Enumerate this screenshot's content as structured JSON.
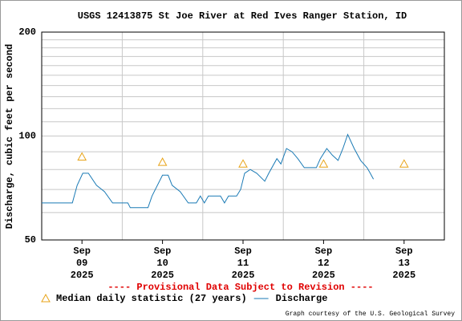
{
  "chart_data": {
    "type": "line",
    "title": "USGS 12413875 St Joe River at Red Ives Ranger Station, ID",
    "ylabel": "Discharge, cubic feet per second",
    "annotation": "---- Provisional Data Subject to Revision ----",
    "credit": "Graph courtesy of the U.S. Geological Survey",
    "xlim": [
      9,
      14
    ],
    "xticks": [
      {
        "value": 9.5,
        "label": "Sep 09 2025"
      },
      {
        "value": 10.5,
        "label": "Sep 10 2025"
      },
      {
        "value": 11.5,
        "label": "Sep 11 2025"
      },
      {
        "value": 12.5,
        "label": "Sep 12 2025"
      },
      {
        "value": 13.5,
        "label": "Sep 13 2025"
      }
    ],
    "x_minor_grid": [
      10,
      11,
      12,
      13
    ],
    "ylim": [
      50,
      200
    ],
    "yticks": [
      50,
      100,
      200
    ],
    "y_minor_grid": [
      60,
      70,
      80,
      90,
      110,
      120,
      130,
      140,
      150,
      160,
      170,
      180,
      190
    ],
    "log_scale": true,
    "grid": true,
    "legend": "bottom",
    "series": [
      {
        "name": "Median daily statistic (27 years)",
        "color": "#e8a317",
        "marker": "triangle",
        "x": [
          9.5,
          10.5,
          11.5,
          12.5,
          13.5
        ],
        "values": [
          87,
          84,
          83,
          83,
          83
        ]
      },
      {
        "name": "Discharge",
        "color": "#1a7ab5",
        "marker": "line",
        "x": [
          9.0,
          9.38,
          9.44,
          9.51,
          9.58,
          9.68,
          9.78,
          9.88,
          10.07,
          10.1,
          10.32,
          10.37,
          10.5,
          10.57,
          10.62,
          10.72,
          10.82,
          10.92,
          10.97,
          11.02,
          11.07,
          11.22,
          11.27,
          11.32,
          11.42,
          11.47,
          11.52,
          11.59,
          11.67,
          11.77,
          11.82,
          11.92,
          11.97,
          12.04,
          12.11,
          12.18,
          12.26,
          12.41,
          12.46,
          12.54,
          12.61,
          12.68,
          12.74,
          12.8,
          12.88,
          12.96,
          13.04,
          13.08,
          13.12
        ],
        "values": [
          64,
          64,
          72,
          78,
          78,
          72,
          69,
          64,
          64,
          62,
          62,
          67,
          77,
          77,
          72,
          69,
          64,
          64,
          67,
          64,
          67,
          67,
          64,
          67,
          67,
          70,
          78,
          80,
          78,
          74,
          78,
          86,
          83,
          92,
          90,
          86,
          81,
          81,
          86,
          92,
          88,
          85,
          92,
          101,
          92,
          85,
          81,
          78,
          75
        ]
      }
    ]
  }
}
